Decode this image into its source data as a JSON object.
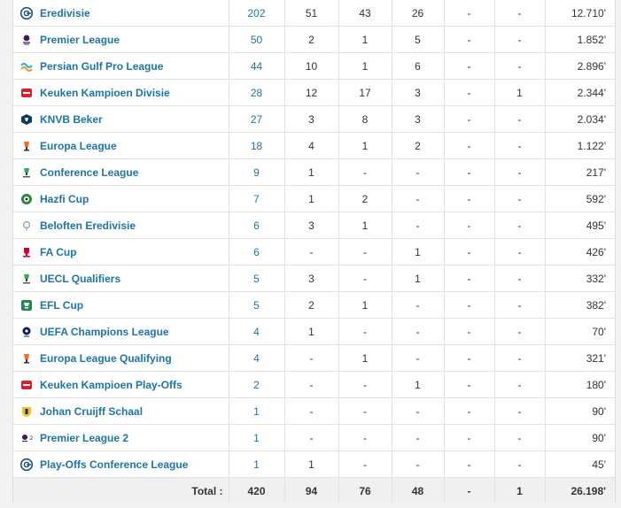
{
  "rows": [
    {
      "logo": "eredivisie-logo-icon",
      "competition": "Eredivisie",
      "apps": "202",
      "goals": "51",
      "assists": "43",
      "yellow": "26",
      "second_yellow": "-",
      "red": "-",
      "minutes": "12.710'"
    },
    {
      "logo": "premier-league-logo-icon",
      "competition": "Premier League",
      "apps": "50",
      "goals": "2",
      "assists": "1",
      "yellow": "5",
      "second_yellow": "-",
      "red": "-",
      "minutes": "1.852'"
    },
    {
      "logo": "persian-gulf-pro-league-logo-icon",
      "competition": "Persian Gulf Pro League",
      "apps": "44",
      "goals": "10",
      "assists": "1",
      "yellow": "6",
      "second_yellow": "-",
      "red": "-",
      "minutes": "2.896'"
    },
    {
      "logo": "keuken-kampioen-divisie-logo-icon",
      "competition": "Keuken Kampioen Divisie",
      "apps": "28",
      "goals": "12",
      "assists": "17",
      "yellow": "3",
      "second_yellow": "-",
      "red": "1",
      "minutes": "2.344'"
    },
    {
      "logo": "knvb-beker-logo-icon",
      "competition": "KNVB Beker",
      "apps": "27",
      "goals": "3",
      "assists": "8",
      "yellow": "3",
      "second_yellow": "-",
      "red": "-",
      "minutes": "2.034'"
    },
    {
      "logo": "europa-league-logo-icon",
      "competition": "Europa League",
      "apps": "18",
      "goals": "4",
      "assists": "1",
      "yellow": "2",
      "second_yellow": "-",
      "red": "-",
      "minutes": "1.122'"
    },
    {
      "logo": "conference-league-logo-icon",
      "competition": "Conference League",
      "apps": "9",
      "goals": "1",
      "assists": "-",
      "yellow": "-",
      "second_yellow": "-",
      "red": "-",
      "minutes": "217'"
    },
    {
      "logo": "hazfi-cup-logo-icon",
      "competition": "Hazfi Cup",
      "apps": "7",
      "goals": "1",
      "assists": "2",
      "yellow": "-",
      "second_yellow": "-",
      "red": "-",
      "minutes": "592'"
    },
    {
      "logo": "beloften-eredivisie-logo-icon",
      "competition": "Beloften Eredivisie",
      "apps": "6",
      "goals": "3",
      "assists": "1",
      "yellow": "-",
      "second_yellow": "-",
      "red": "-",
      "minutes": "495'"
    },
    {
      "logo": "fa-cup-logo-icon",
      "competition": "FA Cup",
      "apps": "6",
      "goals": "-",
      "assists": "-",
      "yellow": "1",
      "second_yellow": "-",
      "red": "-",
      "minutes": "426'"
    },
    {
      "logo": "uecl-qualifiers-logo-icon",
      "competition": "UECL Qualifiers",
      "apps": "5",
      "goals": "3",
      "assists": "-",
      "yellow": "1",
      "second_yellow": "-",
      "red": "-",
      "minutes": "332'"
    },
    {
      "logo": "efl-cup-logo-icon",
      "competition": "EFL Cup",
      "apps": "5",
      "goals": "2",
      "assists": "1",
      "yellow": "-",
      "second_yellow": "-",
      "red": "-",
      "minutes": "382'"
    },
    {
      "logo": "uefa-champions-league-logo-icon",
      "competition": "UEFA Champions League",
      "apps": "4",
      "goals": "1",
      "assists": "-",
      "yellow": "-",
      "second_yellow": "-",
      "red": "-",
      "minutes": "70'"
    },
    {
      "logo": "europa-league-qualifying-logo-icon",
      "competition": "Europa League Qualifying",
      "apps": "4",
      "goals": "-",
      "assists": "1",
      "yellow": "-",
      "second_yellow": "-",
      "red": "-",
      "minutes": "321'"
    },
    {
      "logo": "keuken-kampioen-play-offs-logo-icon",
      "competition": "Keuken Kampioen Play-Offs",
      "apps": "2",
      "goals": "-",
      "assists": "-",
      "yellow": "1",
      "second_yellow": "-",
      "red": "-",
      "minutes": "180'"
    },
    {
      "logo": "johan-cruijff-schaal-logo-icon",
      "competition": "Johan Cruijff Schaal",
      "apps": "1",
      "goals": "-",
      "assists": "-",
      "yellow": "-",
      "second_yellow": "-",
      "red": "-",
      "minutes": "90'"
    },
    {
      "logo": "premier-league-2-logo-icon",
      "competition": "Premier League 2",
      "apps": "1",
      "goals": "-",
      "assists": "-",
      "yellow": "-",
      "second_yellow": "-",
      "red": "-",
      "minutes": "90'"
    },
    {
      "logo": "play-offs-conference-league-logo-icon",
      "competition": "Play-Offs Conference League",
      "apps": "1",
      "goals": "1",
      "assists": "-",
      "yellow": "-",
      "second_yellow": "-",
      "red": "-",
      "minutes": "45'"
    }
  ],
  "total": {
    "label": "Total :",
    "apps": "420",
    "goals": "94",
    "assists": "76",
    "yellow": "48",
    "second_yellow": "-",
    "red": "1",
    "minutes": "26.198'"
  },
  "colors": {
    "link": "#1d75a3",
    "row_border": "#e2e2e2",
    "total_bg": "#f0f0f0"
  }
}
